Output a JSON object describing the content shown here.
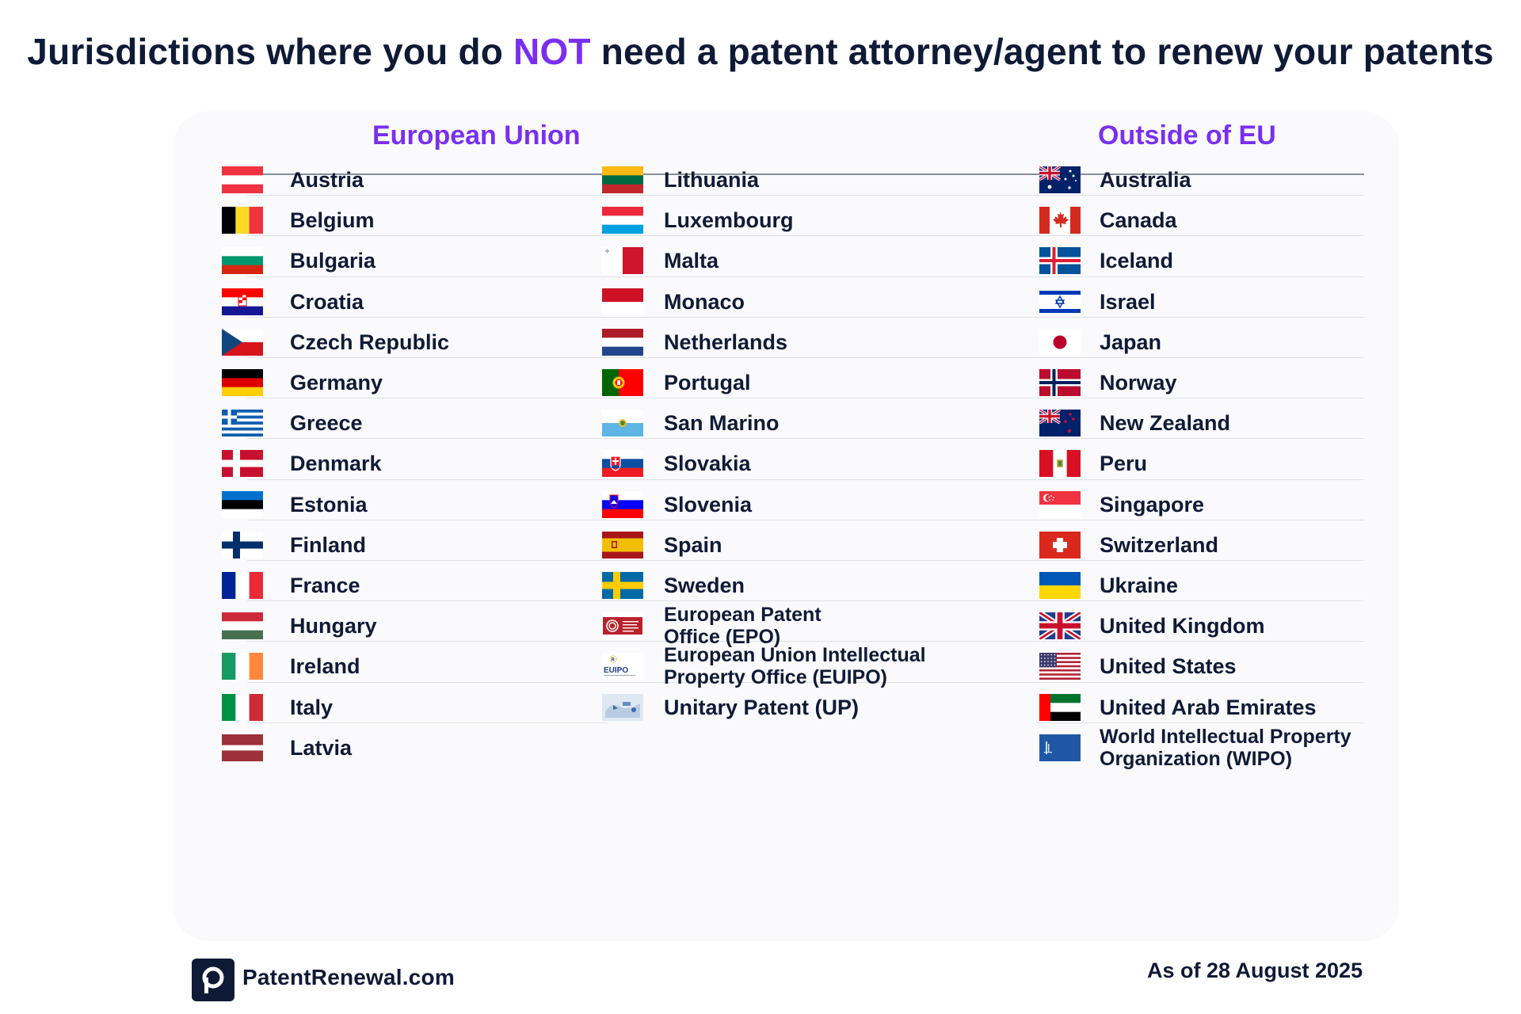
{
  "title": {
    "before": "Jurisdictions where you do ",
    "highlight": "NOT",
    "after": " need a patent attorney/agent to renew your patents"
  },
  "headers": {
    "eu": "European Union",
    "outside": "Outside of EU"
  },
  "colors": {
    "accent": "#7a2ff0",
    "text": "#0f1a36",
    "card": "#fafafc"
  },
  "eu_col1": [
    {
      "name": "Austria",
      "flag": "austria-flag-icon"
    },
    {
      "name": "Belgium",
      "flag": "belgium-flag-icon"
    },
    {
      "name": "Bulgaria",
      "flag": "bulgaria-flag-icon"
    },
    {
      "name": "Croatia",
      "flag": "croatia-flag-icon"
    },
    {
      "name": "Czech Republic",
      "flag": "czech-republic-flag-icon"
    },
    {
      "name": "Germany",
      "flag": "germany-flag-icon"
    },
    {
      "name": "Greece",
      "flag": "greece-flag-icon"
    },
    {
      "name": "Denmark",
      "flag": "denmark-flag-icon"
    },
    {
      "name": "Estonia",
      "flag": "estonia-flag-icon"
    },
    {
      "name": "Finland",
      "flag": "finland-flag-icon"
    },
    {
      "name": "France",
      "flag": "france-flag-icon"
    },
    {
      "name": "Hungary",
      "flag": "hungary-flag-icon"
    },
    {
      "name": "Ireland",
      "flag": "ireland-flag-icon"
    },
    {
      "name": "Italy",
      "flag": "italy-flag-icon"
    },
    {
      "name": "Latvia",
      "flag": "latvia-flag-icon"
    }
  ],
  "eu_col2": [
    {
      "name": "Lithuania",
      "flag": "lithuania-flag-icon"
    },
    {
      "name": "Luxembourg",
      "flag": "luxembourg-flag-icon"
    },
    {
      "name": "Malta",
      "flag": "malta-flag-icon"
    },
    {
      "name": "Monaco",
      "flag": "monaco-flag-icon"
    },
    {
      "name": "Netherlands",
      "flag": "netherlands-flag-icon"
    },
    {
      "name": "Portugal",
      "flag": "portugal-flag-icon"
    },
    {
      "name": "San Marino",
      "flag": "san-marino-flag-icon"
    },
    {
      "name": "Slovakia",
      "flag": "slovakia-flag-icon"
    },
    {
      "name": "Slovenia",
      "flag": "slovenia-flag-icon"
    },
    {
      "name": "Spain",
      "flag": "spain-flag-icon"
    },
    {
      "name": "Sweden",
      "flag": "sweden-flag-icon"
    },
    {
      "name": "European Patent\nOffice (EPO)",
      "flag": "epo-logo-icon"
    },
    {
      "name": "European Union Intellectual\nProperty Office (EUIPO)",
      "flag": "euipo-logo-icon"
    },
    {
      "name": "Unitary Patent (UP)",
      "flag": "unitary-patent-icon"
    }
  ],
  "outside": [
    {
      "name": "Australia",
      "flag": "australia-flag-icon"
    },
    {
      "name": "Canada",
      "flag": "canada-flag-icon"
    },
    {
      "name": "Iceland",
      "flag": "iceland-flag-icon"
    },
    {
      "name": "Israel",
      "flag": "israel-flag-icon"
    },
    {
      "name": "Japan",
      "flag": "japan-flag-icon"
    },
    {
      "name": "Norway",
      "flag": "norway-flag-icon"
    },
    {
      "name": "New Zealand",
      "flag": "new-zealand-flag-icon"
    },
    {
      "name": "Peru",
      "flag": "peru-flag-icon"
    },
    {
      "name": "Singapore",
      "flag": "singapore-flag-icon"
    },
    {
      "name": "Switzerland",
      "flag": "switzerland-flag-icon"
    },
    {
      "name": "Ukraine",
      "flag": "ukraine-flag-icon"
    },
    {
      "name": "United Kingdom",
      "flag": "united-kingdom-flag-icon"
    },
    {
      "name": "United States",
      "flag": "united-states-flag-icon"
    },
    {
      "name": "United Arab Emirates",
      "flag": "uae-flag-icon"
    },
    {
      "name": "World Intellectual Property\nOrganization (WIPO)",
      "flag": "wipo-logo-icon"
    }
  ],
  "footer": {
    "site": "PatentRenewal.com",
    "date": "As of 28 August 2025",
    "logo_letter": "p"
  }
}
